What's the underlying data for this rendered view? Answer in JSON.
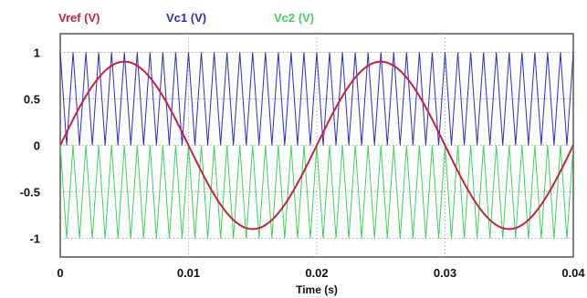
{
  "chart_data": {
    "type": "line",
    "title": "",
    "xlabel": "Time (s)",
    "ylabel": "",
    "xlim": [
      0,
      0.04
    ],
    "ylim": [
      -1.2,
      1.2
    ],
    "grid": true,
    "legend_position": "top-left",
    "x_ticks": [
      {
        "value": 0,
        "label": "0"
      },
      {
        "value": 0.01,
        "label": "0.01"
      },
      {
        "value": 0.02,
        "label": "0.02"
      },
      {
        "value": 0.03,
        "label": "0.03"
      },
      {
        "value": 0.04,
        "label": "0.04"
      }
    ],
    "y_ticks": [
      {
        "value": 1,
        "label": "1"
      },
      {
        "value": 0.5,
        "label": "0.5"
      },
      {
        "value": 0,
        "label": "0"
      },
      {
        "value": -0.5,
        "label": "-0.5"
      },
      {
        "value": -1,
        "label": "-1"
      }
    ],
    "series": [
      {
        "name": "Vref (V)",
        "color": "#c8203a",
        "shape": "sine",
        "amplitude": 0.9,
        "frequency_hz": 50
      },
      {
        "name": "Vc1 (V)",
        "color": "#2a2ac8",
        "shape": "triangle",
        "min": 0,
        "max": 1,
        "frequency_hz": 1000
      },
      {
        "name": "Vc2 (V)",
        "color": "#3ad25a",
        "shape": "triangle",
        "min": -1,
        "max": 0,
        "frequency_hz": 1000
      }
    ]
  }
}
